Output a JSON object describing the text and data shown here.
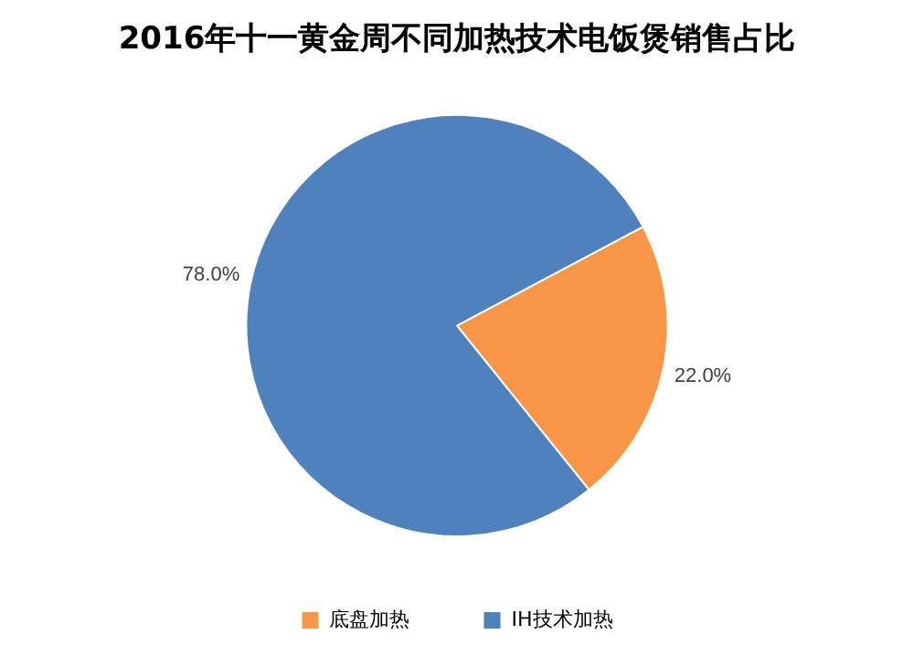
{
  "chart_data": {
    "type": "pie",
    "title": "2016年十一黄金周不同加热技术电饭煲销售占比",
    "categories": [
      "底盘加热",
      "IH技术加热"
    ],
    "values": [
      22,
      78
    ],
    "colors": [
      "#f79646",
      "#4f81bd"
    ],
    "value_labels": [
      "22.0%",
      "78.0%"
    ],
    "legend": "bottom"
  }
}
